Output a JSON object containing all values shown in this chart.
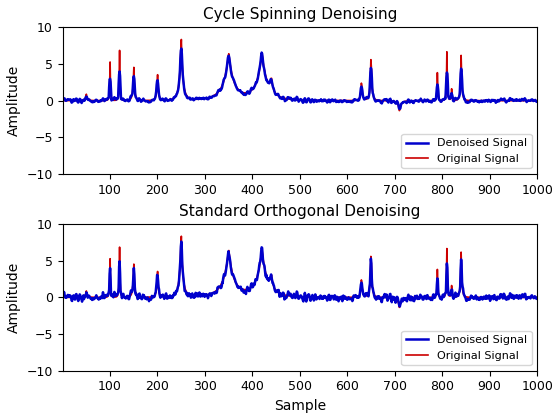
{
  "title1": "Cycle Spinning Denoising",
  "title2": "Standard Orthogonal Denoising",
  "xlabel": "Sample",
  "ylabel": "Amplitude",
  "xlim": [
    1,
    1000
  ],
  "ylim": [
    -10,
    10
  ],
  "xticks": [
    100,
    200,
    300,
    400,
    500,
    600,
    700,
    800,
    900,
    1000
  ],
  "yticks": [
    -10,
    -5,
    0,
    5,
    10
  ],
  "denoised_color": "#0000CC",
  "original_color": "#CC0000",
  "denoised_lw": 1.8,
  "original_lw": 1.2,
  "legend_labels": [
    "Denoised Signal",
    "Original Signal"
  ],
  "figsize": [
    5.6,
    4.2
  ],
  "dpi": 100,
  "bumps_pos": [
    0.05,
    0.1,
    0.12,
    0.15,
    0.2,
    0.25,
    0.35,
    0.42,
    0.44,
    0.63,
    0.65,
    0.71,
    0.79,
    0.81,
    0.82,
    0.84
  ],
  "bumps_hgt": [
    0.9,
    6.0,
    8.0,
    5.0,
    4.0,
    9.0,
    6.5,
    6.5,
    2.0,
    3.0,
    7.0,
    -1.5,
    5.0,
    8.5,
    2.0,
    7.0
  ],
  "bumps_wid": [
    0.008,
    0.003,
    0.003,
    0.006,
    0.006,
    0.012,
    0.04,
    0.04,
    0.012,
    0.006,
    0.006,
    0.012,
    0.003,
    0.003,
    0.003,
    0.005
  ]
}
